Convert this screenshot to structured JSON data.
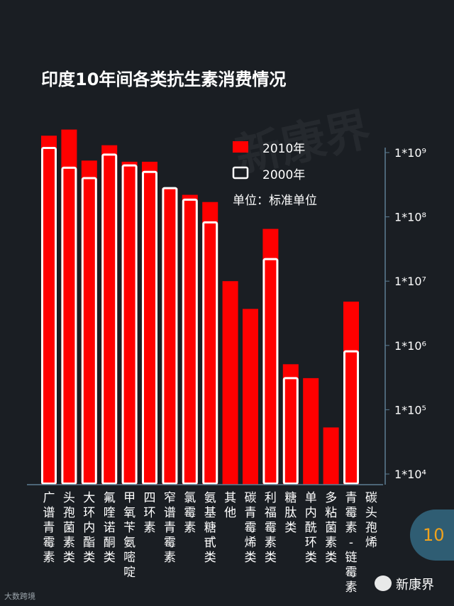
{
  "title": "印度10年间各类抗生素消费情况",
  "legend": {
    "items": [
      {
        "label": "2010年",
        "color": "#ff0000",
        "style": "filled"
      },
      {
        "label": "2000年",
        "color": "#ffffff",
        "style": "outline"
      }
    ],
    "unit": "单位：标准单位"
  },
  "page_number": "10",
  "brand": "新康界",
  "corner_logo": "大数跨境",
  "watermark": "新康界",
  "chart_data": {
    "type": "bar",
    "title": "印度10年间各类抗生素消费情况",
    "scale": "log",
    "ylim": [
      10000,
      1500000000
    ],
    "yticks": [
      {
        "value": 10000,
        "label": "1*10⁴"
      },
      {
        "value": 100000,
        "label": "1*10⁵"
      },
      {
        "value": 1000000,
        "label": "1*10⁶"
      },
      {
        "value": 10000000,
        "label": "1*10⁷"
      },
      {
        "value": 100000000,
        "label": "1*10⁸"
      },
      {
        "value": 1000000000,
        "label": "1*10⁹"
      }
    ],
    "categories": [
      "广谱青霉素",
      "头孢菌素类",
      "大环内酯类",
      "氟喹诺酮类",
      "甲氧苄氨嘧啶",
      "四环素",
      "窄谱青霉素",
      "氯霉素",
      "氨基糖甙类",
      "其他",
      "碳青霉烯类",
      "利福霉素类",
      "糖肽类",
      "单内酰环类",
      "多粘菌素类",
      "青霉素-链霉素",
      "碳头孢烯"
    ],
    "series": [
      {
        "name": "2010年",
        "color": "#ff0000",
        "values": [
          1830000000,
          2280000000,
          750000000,
          1300000000,
          720000000,
          720000000,
          280000000,
          220000000,
          170000000,
          10000000,
          3700000,
          65000000,
          510000,
          310000,
          53000,
          4800000,
          null
        ]
      },
      {
        "name": "2000年",
        "color": "#ffffff",
        "values": [
          1180000000,
          580000000,
          400000000,
          930000000,
          630000000,
          500000000,
          280000000,
          185000000,
          82000000,
          null,
          null,
          22000000,
          310000,
          null,
          null,
          810000,
          null
        ]
      }
    ]
  }
}
